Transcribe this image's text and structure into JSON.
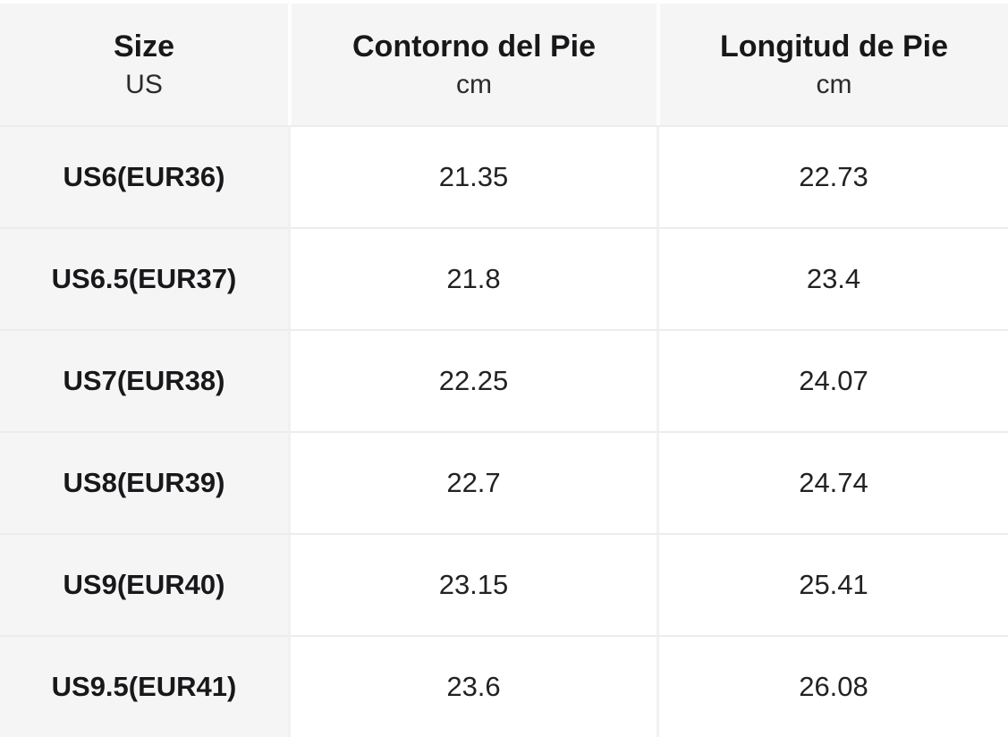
{
  "colors": {
    "page_background": "#ffffff",
    "header_bg": "#f5f5f6",
    "label_column_bg": "#f5f5f6",
    "value_cell_bg": "#ffffff",
    "row_divider": "#ececed",
    "column_divider": "#f1f1f2",
    "text_primary": "#18181a"
  },
  "chart_data": {
    "type": "table",
    "columns": [
      {
        "main": "Size",
        "sub": "US"
      },
      {
        "main": "Contorno del Pie",
        "sub": "cm"
      },
      {
        "main": "Longitud de Pie",
        "sub": "cm"
      }
    ],
    "rows": [
      {
        "size": "US6(EUR36)",
        "contorno": "21.35",
        "longitud": "22.73"
      },
      {
        "size": "US6.5(EUR37)",
        "contorno": "21.8",
        "longitud": "23.4"
      },
      {
        "size": "US7(EUR38)",
        "contorno": "22.25",
        "longitud": "24.07"
      },
      {
        "size": "US8(EUR39)",
        "contorno": "22.7",
        "longitud": "24.74"
      },
      {
        "size": "US9(EUR40)",
        "contorno": "23.15",
        "longitud": "25.41"
      },
      {
        "size": "US9.5(EUR41)",
        "contorno": "23.6",
        "longitud": "26.08"
      }
    ]
  }
}
